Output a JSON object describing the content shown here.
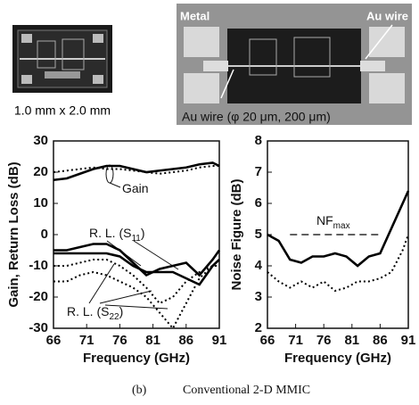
{
  "photo_labels": {
    "size": "1.0 mm x 2.0 mm",
    "metal": "Metal",
    "au_wire_top": "Au wire",
    "au_wire_bottom": "Au wire (φ 20 μm, 200 μm)"
  },
  "caption": {
    "label": "(b)",
    "text": "Conventional 2-D MMIC"
  },
  "chart_data": [
    {
      "type": "line",
      "xlabel": "Frequency (GHz)",
      "ylabel": "Gain, Return Loss (dB)",
      "x": [
        66,
        68,
        70,
        72,
        74,
        76,
        78,
        80,
        82,
        84,
        86,
        88,
        90,
        91
      ],
      "xlim": [
        66,
        91
      ],
      "xticks": [
        66,
        71,
        76,
        81,
        86,
        91
      ],
      "ylim": [
        -30,
        30
      ],
      "yticks": [
        -30,
        -20,
        -10,
        0,
        10,
        20,
        30
      ],
      "annotations": [
        [
          "Gain"
        ],
        [
          "R. L. (S",
          "11",
          ")"
        ],
        [
          "R. L. (S",
          "22",
          ")"
        ]
      ],
      "series": [
        {
          "color": "#000000",
          "style": "solid",
          "values": [
            17.5,
            18,
            19.5,
            21,
            22,
            22,
            21,
            20,
            20.5,
            21,
            21.5,
            22.5,
            23,
            22
          ]
        },
        {
          "color": "#000000",
          "style": "dotted",
          "values": [
            20,
            20.5,
            21,
            21.5,
            21,
            21,
            20.5,
            20,
            19.5,
            20,
            20.5,
            21.5,
            22,
            22
          ]
        },
        {
          "color": "#000000",
          "style": "solid",
          "values": [
            -5,
            -5,
            -4,
            -3,
            -3,
            -5,
            -9,
            -13,
            -11,
            -10,
            -9,
            -13,
            -8,
            -5
          ]
        },
        {
          "color": "#000000",
          "style": "solid",
          "values": [
            -6,
            -6,
            -6,
            -6,
            -6,
            -7,
            -10,
            -12,
            -12,
            -12,
            -14,
            -16,
            -10,
            -8
          ]
        },
        {
          "color": "#000000",
          "style": "dotted",
          "values": [
            -10,
            -10,
            -9,
            -8,
            -8,
            -10,
            -13,
            -17,
            -22,
            -20,
            -15,
            -12,
            -10,
            -10
          ]
        },
        {
          "color": "#000000",
          "style": "dotted",
          "values": [
            -15,
            -15,
            -13,
            -12,
            -13,
            -15,
            -17,
            -20,
            -25,
            -30,
            -22,
            -14,
            -10,
            -10
          ]
        }
      ]
    },
    {
      "type": "line",
      "xlabel": "Frequency (GHz)",
      "ylabel": "Noise Figure (dB)",
      "x": [
        66,
        68,
        70,
        72,
        74,
        76,
        78,
        80,
        82,
        84,
        86,
        88,
        90,
        91
      ],
      "xlim": [
        66,
        91
      ],
      "xticks": [
        66,
        71,
        76,
        81,
        86,
        91
      ],
      "ylim": [
        2,
        8
      ],
      "yticks": [
        2,
        3,
        4,
        5,
        6,
        7,
        8
      ],
      "annotations": [
        [
          "NF",
          "max"
        ]
      ],
      "series": [
        {
          "color": "#000000",
          "style": "solid",
          "values": [
            5,
            4.8,
            4.2,
            4.1,
            4.3,
            4.3,
            4.4,
            4.3,
            4,
            4.3,
            4.4,
            5.2,
            6,
            6.4
          ]
        },
        {
          "color": "#000000",
          "style": "dotted",
          "values": [
            3.8,
            3.5,
            3.3,
            3.5,
            3.3,
            3.5,
            3.2,
            3.3,
            3.5,
            3.5,
            3.6,
            3.8,
            4.5,
            5
          ]
        },
        {
          "color": "#000000",
          "style": "dashed",
          "x": [
            70,
            86
          ],
          "values": [
            5,
            5
          ]
        }
      ]
    }
  ]
}
